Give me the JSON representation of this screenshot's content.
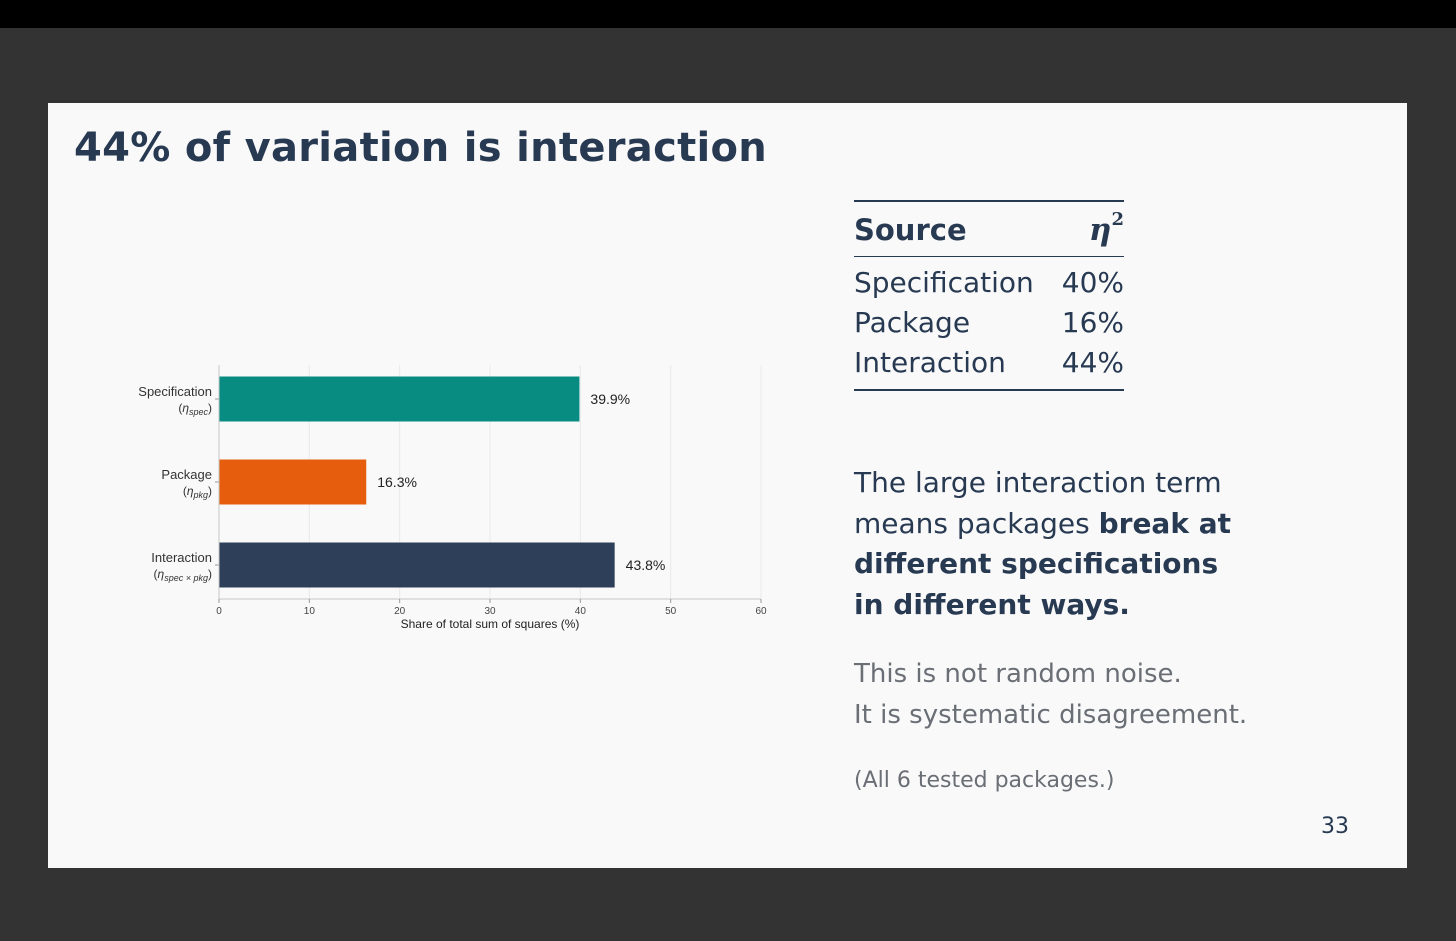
{
  "slide": {
    "title": "44% of variation is interaction",
    "page_number": "33"
  },
  "table": {
    "header_source": "Source",
    "header_eta_symbol": "η",
    "header_eta_exponent": "2",
    "rows": [
      {
        "source": "Specification",
        "value": "40%"
      },
      {
        "source": "Package",
        "value": "16%"
      },
      {
        "source": "Interaction",
        "value": "44%"
      }
    ]
  },
  "text": {
    "para_part1": "The large interaction term means packages ",
    "para_bold": "break at different specifications in different ways.",
    "note_line1": "This is not random noise.",
    "note_line2": "It is systematic disagreement.",
    "footnote": "(All 6 tested packages.)"
  },
  "chart_data": {
    "type": "bar",
    "orientation": "horizontal",
    "categories": [
      "Specification",
      "Package",
      "Interaction"
    ],
    "category_subscripts": [
      "spec",
      "pkg",
      "spec × pkg"
    ],
    "values": [
      39.9,
      16.3,
      43.8
    ],
    "value_labels": [
      "39.9%",
      "16.3%",
      "43.8%"
    ],
    "colors": [
      "#088c82",
      "#e55d0d",
      "#2e3f59"
    ],
    "xlabel": "Share of total sum of squares (%)",
    "xlim": [
      0,
      60
    ],
    "xticks": [
      0,
      10,
      20,
      30,
      40,
      50,
      60
    ],
    "grid": true
  }
}
